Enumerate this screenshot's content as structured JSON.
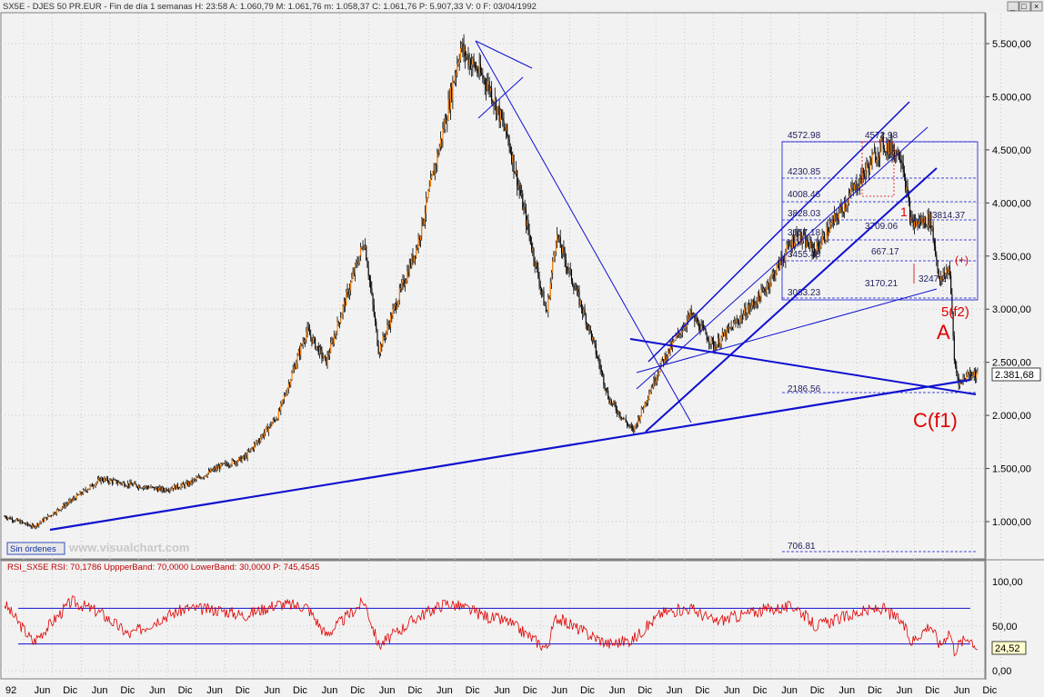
{
  "header": {
    "symbol": "SX5E",
    "name": "DJES 50 PR.EUR",
    "period": "Fin de día 1 semanas",
    "H": "23:58",
    "A": "1.060,79",
    "M": "1.061,76",
    "m": "1.058,37",
    "C": "1.061,76",
    "P": "5.907,33",
    "V": "0",
    "F": "03/04/1992",
    "text": "SX5E - DJES 50 PR.EUR - Fin de día 1 semanas H: 23:58  A: 1.060,79  M: 1.061,76  m: 1.058,37  C: 1.061,76  P: 5.907,33  V: 0  F: 03/04/1992"
  },
  "window_buttons": {
    "minimize": "_",
    "restore": "□",
    "close": "×"
  },
  "sin_ordenes": "Sin órdenes",
  "watermark": "www.visualchart.com",
  "current_price": "2.381,68",
  "rsi_current": "24,52",
  "rsi_header": "RSI_SX5E  RSI: 70,1786  UppperBand: 70,0000  LowerBand: 30,0000  P: 745,4545",
  "y_ticks_price": [
    "5.500,00",
    "5.000,00",
    "4.500,00",
    "4.000,00",
    "3.500,00",
    "3.000,00",
    "2.500,00",
    "2.000,00",
    "1.500,00",
    "1.000,00"
  ],
  "y_ticks_rsi": [
    "100,00",
    "50,00",
    "0,00"
  ],
  "x_ticks": [
    "92",
    "Jun",
    "Dic",
    "Jun",
    "Dic",
    "Jun",
    "Dic",
    "Jun",
    "Dic",
    "Jun",
    "Dic",
    "Jun",
    "Dic",
    "Jun",
    "Dic",
    "Jun",
    "Dic",
    "Jun",
    "Dic",
    "Jun",
    "Dic",
    "Jun",
    "Dic",
    "Jun",
    "Dic",
    "Jun",
    "Dic",
    "Jun",
    "Dic",
    "Jun",
    "Dic",
    "Jun",
    "Dic",
    "Jun",
    "Dic"
  ],
  "fib_labels": [
    "4572.98",
    "4572.98",
    "4230.85",
    "4008.46",
    "3828.03",
    "3657.18",
    "3455.48",
    "3083.23",
    "2186.56",
    "706.81",
    "3709.06",
    "3170.21",
    "3247.2",
    "667.17",
    "3814.37"
  ],
  "wave_labels": {
    "A": "A",
    "C": "C(f1)",
    "five": "5(f2)",
    "one": "1",
    "bf": "(+)"
  },
  "colors": {
    "accent": "#1010d0",
    "candle": "#000000",
    "candle_up": "#ff8000",
    "rsi": "#e00000",
    "annot": "#e00000",
    "grid": "#c8c8c8"
  },
  "chart_data": [
    {
      "type": "line",
      "title": "SX5E - DJES 50 PR.EUR (weekly)",
      "ylim": [
        700,
        5650
      ],
      "x_range": [
        "1992-04",
        "2009-03"
      ],
      "series": [
        {
          "name": "SX5E",
          "points": [
            [
              "1992-04",
              1050
            ],
            [
              "1992-10",
              950
            ],
            [
              "1993-06",
              1200
            ],
            [
              "1993-12",
              1400
            ],
            [
              "1994-06",
              1350
            ],
            [
              "1995-01",
              1300
            ],
            [
              "1995-06",
              1350
            ],
            [
              "1996-01",
              1520
            ],
            [
              "1996-06",
              1600
            ],
            [
              "1997-01",
              2000
            ],
            [
              "1997-07",
              2800
            ],
            [
              "1997-11",
              2500
            ],
            [
              "1998-07",
              3650
            ],
            [
              "1998-10",
              2600
            ],
            [
              "1999-06",
              3600
            ],
            [
              "1999-12",
              4800
            ],
            [
              "2000-03",
              5460
            ],
            [
              "2000-09",
              5100
            ],
            [
              "2001-01",
              4600
            ],
            [
              "2001-09",
              2950
            ],
            [
              "2001-11",
              3700
            ],
            [
              "2002-06",
              2800
            ],
            [
              "2002-10",
              2150
            ],
            [
              "2003-03",
              1850
            ],
            [
              "2003-09",
              2500
            ],
            [
              "2004-03",
              2950
            ],
            [
              "2004-08",
              2650
            ],
            [
              "2005-06",
              3150
            ],
            [
              "2006-01",
              3700
            ],
            [
              "2006-05",
              3550
            ],
            [
              "2007-02",
              4200
            ],
            [
              "2007-07",
              4557
            ],
            [
              "2007-11",
              4450
            ],
            [
              "2008-01",
              3800
            ],
            [
              "2008-05",
              3850
            ],
            [
              "2008-07",
              3250
            ],
            [
              "2008-09",
              3400
            ],
            [
              "2008-10",
              2500
            ],
            [
              "2008-11",
              2300
            ],
            [
              "2009-01",
              2400
            ],
            [
              "2009-03",
              2381.68
            ]
          ]
        }
      ]
    },
    {
      "type": "line",
      "title": "RSI_SX5E",
      "ylim": [
        0,
        100
      ],
      "bands": [
        70,
        30
      ],
      "series": [
        {
          "name": "RSI",
          "points": [
            [
              "1992-04",
              75
            ],
            [
              "1992-10",
              32
            ],
            [
              "1993-06",
              78
            ],
            [
              "1993-12",
              65
            ],
            [
              "1994-06",
              40
            ],
            [
              "1995-01",
              60
            ],
            [
              "1995-06",
              70
            ],
            [
              "1996-01",
              68
            ],
            [
              "1996-06",
              62
            ],
            [
              "1997-01",
              75
            ],
            [
              "1997-07",
              72
            ],
            [
              "1997-11",
              40
            ],
            [
              "1998-07",
              78
            ],
            [
              "1998-10",
              28
            ],
            [
              "1999-06",
              60
            ],
            [
              "1999-12",
              76
            ],
            [
              "2000-03",
              72
            ],
            [
              "2000-09",
              60
            ],
            [
              "2001-01",
              55
            ],
            [
              "2001-09",
              25
            ],
            [
              "2001-11",
              60
            ],
            [
              "2002-06",
              40
            ],
            [
              "2002-10",
              30
            ],
            [
              "2003-03",
              35
            ],
            [
              "2003-09",
              65
            ],
            [
              "2004-03",
              70
            ],
            [
              "2004-08",
              55
            ],
            [
              "2005-06",
              68
            ],
            [
              "2006-01",
              72
            ],
            [
              "2006-05",
              50
            ],
            [
              "2007-02",
              65
            ],
            [
              "2007-07",
              70
            ],
            [
              "2007-11",
              55
            ],
            [
              "2008-01",
              32
            ],
            [
              "2008-05",
              52
            ],
            [
              "2008-07",
              28
            ],
            [
              "2008-09",
              45
            ],
            [
              "2008-10",
              22
            ],
            [
              "2008-11",
              30
            ],
            [
              "2009-01",
              38
            ],
            [
              "2009-03",
              24.52
            ]
          ]
        }
      ]
    }
  ]
}
